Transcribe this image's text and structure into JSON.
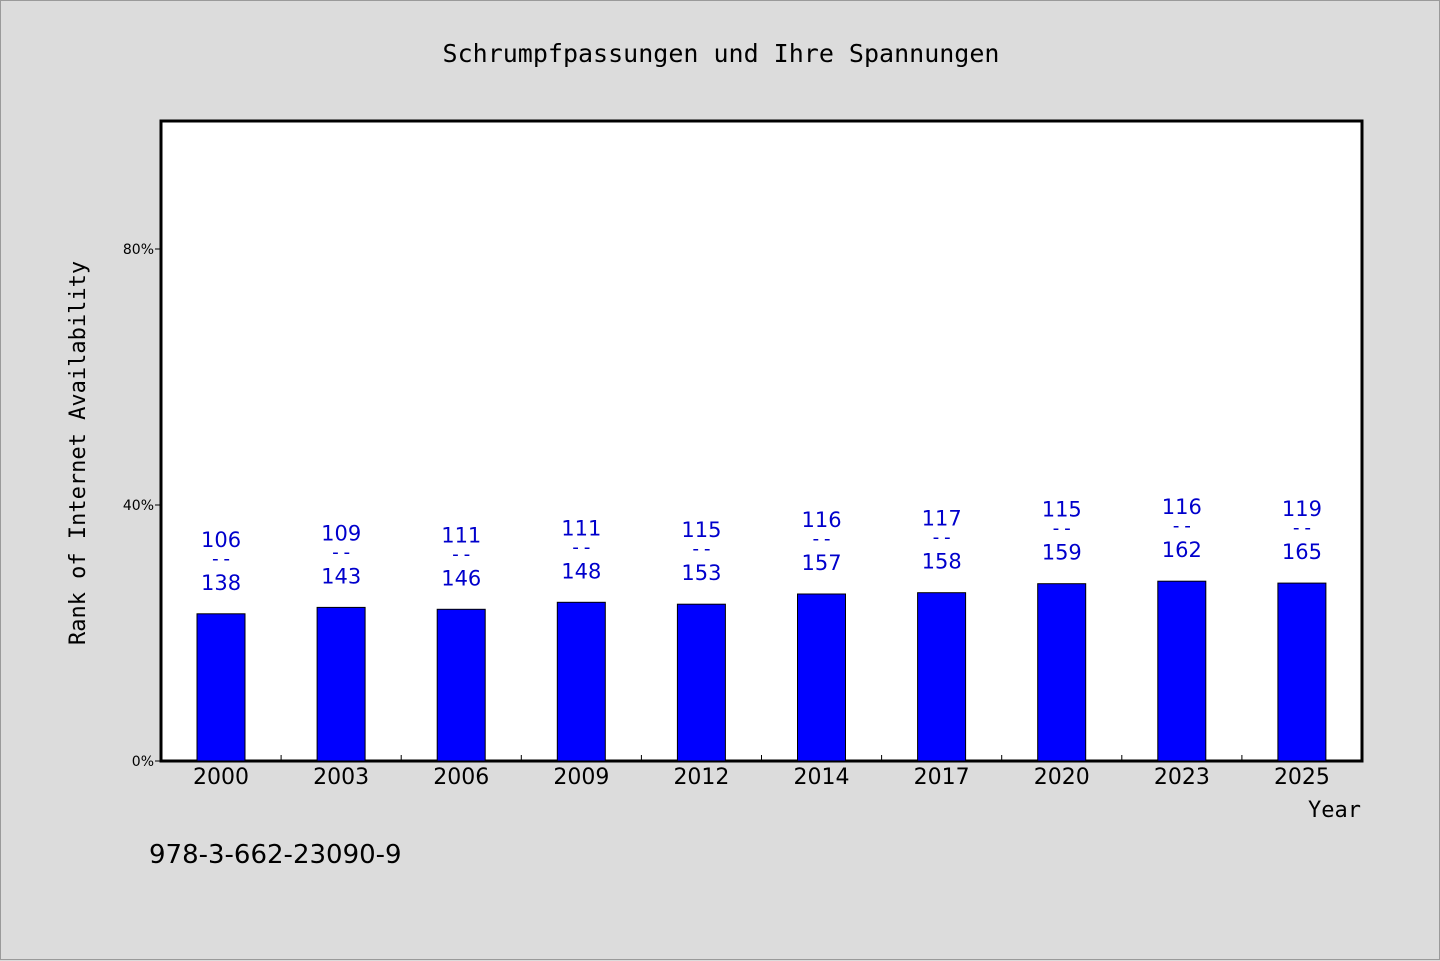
{
  "chart_data": {
    "type": "bar",
    "title": "Schrumpfpassungen und Ihre Spannungen",
    "xlabel": "Year",
    "ylabel": "Rank of Internet Availability",
    "categories": [
      "2000",
      "2003",
      "2006",
      "2009",
      "2012",
      "2014",
      "2017",
      "2020",
      "2023",
      "2025"
    ],
    "values": [
      23,
      24,
      23.7,
      24.8,
      24.5,
      26.1,
      26.3,
      27.7,
      28.1,
      27.8
    ],
    "bar_labels": [
      {
        "top": "106",
        "mid": "--",
        "bottom": "138"
      },
      {
        "top": "109",
        "mid": "--",
        "bottom": "143"
      },
      {
        "top": "111",
        "mid": "--",
        "bottom": "146"
      },
      {
        "top": "111",
        "mid": "--",
        "bottom": "148"
      },
      {
        "top": "115",
        "mid": "--",
        "bottom": "153"
      },
      {
        "top": "116",
        "mid": "--",
        "bottom": "157"
      },
      {
        "top": "117",
        "mid": "--",
        "bottom": "158"
      },
      {
        "top": "115",
        "mid": "--",
        "bottom": "159"
      },
      {
        "top": "116",
        "mid": "--",
        "bottom": "162"
      },
      {
        "top": "119",
        "mid": "--",
        "bottom": "165"
      }
    ],
    "yticks": [
      0,
      40,
      80
    ],
    "ytick_labels": [
      "0%",
      "40%",
      "80%"
    ],
    "ylim": [
      0,
      100
    ],
    "grid": false,
    "colors": {
      "bar": "#0000ff",
      "label": "#0000cc"
    }
  },
  "footer_text": "978-3-662-23090-9"
}
